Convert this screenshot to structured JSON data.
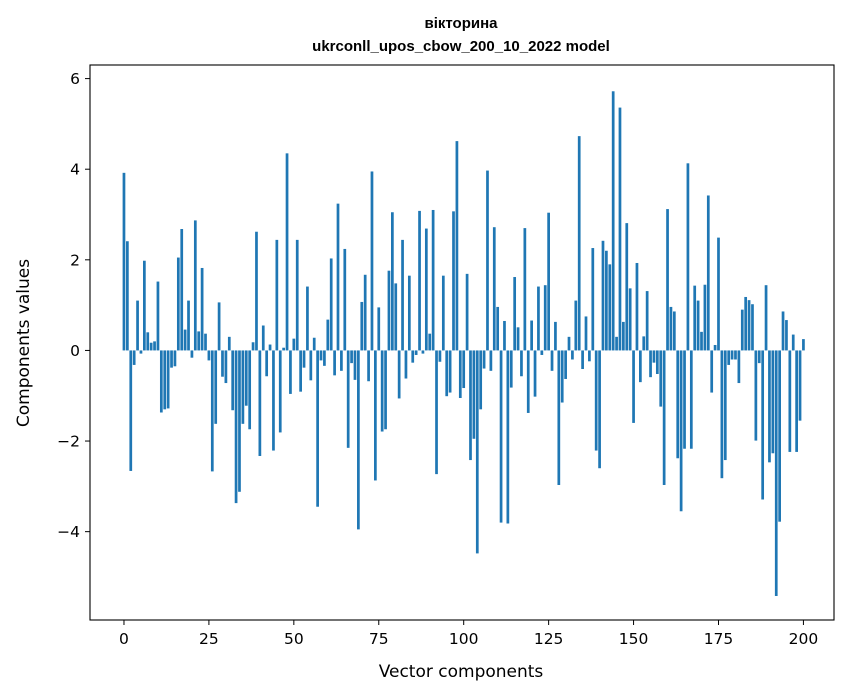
{
  "chart_data": {
    "type": "bar",
    "title": "вікторина",
    "subtitle": "ukrconll_upos_cbow_200_10_2022 model",
    "xlabel": "Vector components",
    "ylabel": "Components values",
    "xlim": [
      -10,
      209
    ],
    "ylim": [
      -5.95,
      6.3
    ],
    "xticks": [
      0,
      25,
      50,
      75,
      100,
      125,
      150,
      175,
      200
    ],
    "yticks": [
      -4,
      -2,
      0,
      2,
      4,
      6
    ],
    "ytick_labels": [
      "−4",
      "−2",
      "0",
      "2",
      "4",
      "6"
    ],
    "bar_color": "#1f77b4",
    "values": [
      3.92,
      2.41,
      -2.66,
      -0.32,
      1.1,
      -0.07,
      1.98,
      0.4,
      0.17,
      0.2,
      1.52,
      -1.37,
      -1.3,
      -1.28,
      -0.38,
      -0.35,
      2.05,
      2.68,
      0.46,
      1.1,
      -0.16,
      2.87,
      0.42,
      1.82,
      0.37,
      -0.22,
      -2.67,
      -1.62,
      1.06,
      -0.58,
      -0.72,
      0.3,
      -1.32,
      -3.37,
      -3.12,
      -1.62,
      -1.22,
      -1.74,
      0.18,
      2.62,
      -2.33,
      0.55,
      -0.57,
      0.13,
      -2.21,
      2.44,
      -1.81,
      0.06,
      4.35,
      -0.96,
      0.26,
      2.44,
      -0.91,
      -0.38,
      1.41,
      -0.66,
      0.28,
      -3.45,
      -0.22,
      -0.34,
      0.68,
      2.03,
      -0.55,
      3.24,
      -0.45,
      2.24,
      -2.15,
      -0.28,
      -0.65,
      -3.95,
      1.07,
      1.67,
      -0.68,
      3.95,
      -2.87,
      0.95,
      -1.79,
      -1.74,
      1.76,
      3.05,
      1.48,
      -1.06,
      2.44,
      -0.62,
      1.65,
      -0.27,
      -0.1,
      3.08,
      -0.07,
      2.69,
      0.37,
      3.1,
      -2.73,
      -0.25,
      1.65,
      -1.01,
      -0.93,
      3.07,
      4.62,
      -1.05,
      -0.83,
      1.69,
      -2.42,
      -1.95,
      -4.48,
      -1.3,
      -0.4,
      3.97,
      -0.45,
      2.72,
      0.96,
      -3.8,
      0.65,
      -3.82,
      -0.82,
      1.62,
      0.51,
      -0.57,
      2.7,
      -1.38,
      0.66,
      -1.02,
      1.41,
      -0.1,
      1.44,
      3.04,
      -0.45,
      0.63,
      -2.97,
      -1.15,
      -0.63,
      0.3,
      -0.2,
      1.1,
      4.73,
      -0.41,
      0.75,
      -0.24,
      2.26,
      -2.21,
      -2.6,
      2.42,
      2.2,
      1.9,
      5.72,
      0.3,
      5.36,
      0.63,
      2.81,
      1.37,
      -1.6,
      1.93,
      -0.7,
      0.31,
      1.31,
      -0.59,
      -0.27,
      -0.52,
      -1.24,
      -2.97,
      3.12,
      0.96,
      0.86,
      -2.38,
      -3.55,
      -2.17,
      4.13,
      -2.17,
      1.43,
      1.1,
      0.41,
      1.45,
      3.42,
      -0.93,
      0.12,
      2.49,
      -2.82,
      -2.42,
      -0.32,
      -0.2,
      -0.2,
      -0.72,
      0.9,
      1.18,
      1.11,
      1.02,
      -1.99,
      -0.28,
      -3.29,
      1.44,
      -2.47,
      -2.27,
      -5.42,
      -3.78,
      0.86,
      0.67,
      -2.24,
      0.35,
      -2.24,
      -1.55,
      0.25
    ]
  }
}
